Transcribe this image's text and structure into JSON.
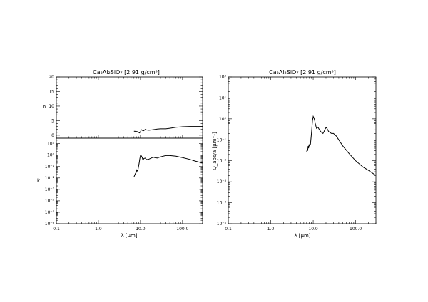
{
  "chart_data": [
    {
      "type": "line",
      "title": "Ca₂Al₂SiO₇ [2.91 g/cm³]",
      "xlabel": "λ [μm]",
      "xscale": "log",
      "xlim": [
        0.1,
        300
      ],
      "xticks": [
        "0.1",
        "1.0",
        "10.0",
        "100.0"
      ],
      "panels": [
        {
          "ylabel": "n",
          "yscale": "linear",
          "ylim": [
            -1,
            20
          ],
          "yticks": [
            "0",
            "5",
            "10",
            "15",
            "20"
          ],
          "series": [
            {
              "x": [
                7.0,
                7.5,
                8.0,
                8.5,
                9.0,
                9.5,
                10.0,
                10.5,
                11.0,
                11.5,
                12.0,
                13.0,
                14.0,
                16.0,
                18.0,
                20.0,
                25.0,
                30.0,
                40.0,
                50.0,
                70.0,
                100.0,
                150.0,
                200.0,
                300.0
              ],
              "y": [
                1.4,
                1.35,
                1.3,
                1.2,
                1.0,
                0.8,
                1.2,
                1.9,
                1.7,
                1.5,
                1.6,
                2.0,
                1.8,
                1.7,
                1.8,
                1.9,
                2.1,
                2.2,
                2.2,
                2.4,
                2.7,
                2.9,
                3.0,
                3.0,
                3.0
              ]
            }
          ]
        },
        {
          "ylabel": "k",
          "yscale": "log",
          "ylim": [
            1e-06,
            30
          ],
          "yticks": [
            "10⁻⁶",
            "10⁻⁵",
            "10⁻⁴",
            "10⁻³",
            "10⁻²",
            "10⁻¹",
            "10⁰",
            "10¹"
          ],
          "series": [
            {
              "x": [
                7.0,
                7.3,
                7.6,
                7.9,
                8.2,
                8.5,
                8.8,
                9.0,
                9.3,
                9.6,
                10.0,
                10.5,
                11.0,
                11.5,
                12.0,
                13.0,
                14.0,
                16.0,
                18.0,
                20.0,
                22.0,
                25.0,
                30.0,
                40.0,
                50.0,
                70.0,
                100.0,
                150.0,
                200.0,
                300.0
              ],
              "y": [
                0.012,
                0.018,
                0.025,
                0.03,
                0.05,
                0.04,
                0.06,
                0.1,
                0.2,
                0.45,
                0.9,
                0.85,
                0.6,
                0.35,
                0.5,
                0.55,
                0.4,
                0.45,
                0.55,
                0.65,
                0.6,
                0.55,
                0.7,
                0.9,
                0.9,
                0.8,
                0.6,
                0.42,
                0.3,
                0.2
              ]
            }
          ]
        }
      ]
    },
    {
      "type": "line",
      "title": "Ca₂Al₂SiO₇ [2.91 g/cm³]",
      "xlabel": "λ [μm]",
      "xscale": "log",
      "xlim": [
        0.1,
        300
      ],
      "xticks": [
        "0.1",
        "1.0",
        "10.0",
        "100.0"
      ],
      "ylabel": "Q_abs/a [μm⁻¹]",
      "yscale": "log",
      "ylim": [
        1e-05,
        100
      ],
      "yticks": [
        "10⁻⁵",
        "10⁻⁴",
        "10⁻³",
        "10⁻²",
        "10⁻¹",
        "10⁰",
        "10¹",
        "10²"
      ],
      "series": [
        {
          "x": [
            7.0,
            7.2,
            7.4,
            7.6,
            7.8,
            8.0,
            8.2,
            8.4,
            8.6,
            8.8,
            9.0,
            9.3,
            9.6,
            10.0,
            10.4,
            10.8,
            11.2,
            11.6,
            12.0,
            13.0,
            14.0,
            15.0,
            16.0,
            17.0,
            18.0,
            19.0,
            20.0,
            21.0,
            22.0,
            23.0,
            25.0,
            27.0,
            30.0,
            35.0,
            40.0,
            50.0,
            70.0,
            100.0,
            150.0,
            200.0,
            300.0
          ],
          "y": [
            0.025,
            0.035,
            0.03,
            0.05,
            0.04,
            0.06,
            0.05,
            0.07,
            0.06,
            0.1,
            0.15,
            0.35,
            0.8,
            1.3,
            1.1,
            0.85,
            0.6,
            0.45,
            0.35,
            0.4,
            0.3,
            0.25,
            0.22,
            0.2,
            0.25,
            0.32,
            0.38,
            0.36,
            0.3,
            0.25,
            0.22,
            0.2,
            0.2,
            0.15,
            0.1,
            0.05,
            0.022,
            0.01,
            0.005,
            0.0035,
            0.002
          ]
        }
      ]
    }
  ]
}
